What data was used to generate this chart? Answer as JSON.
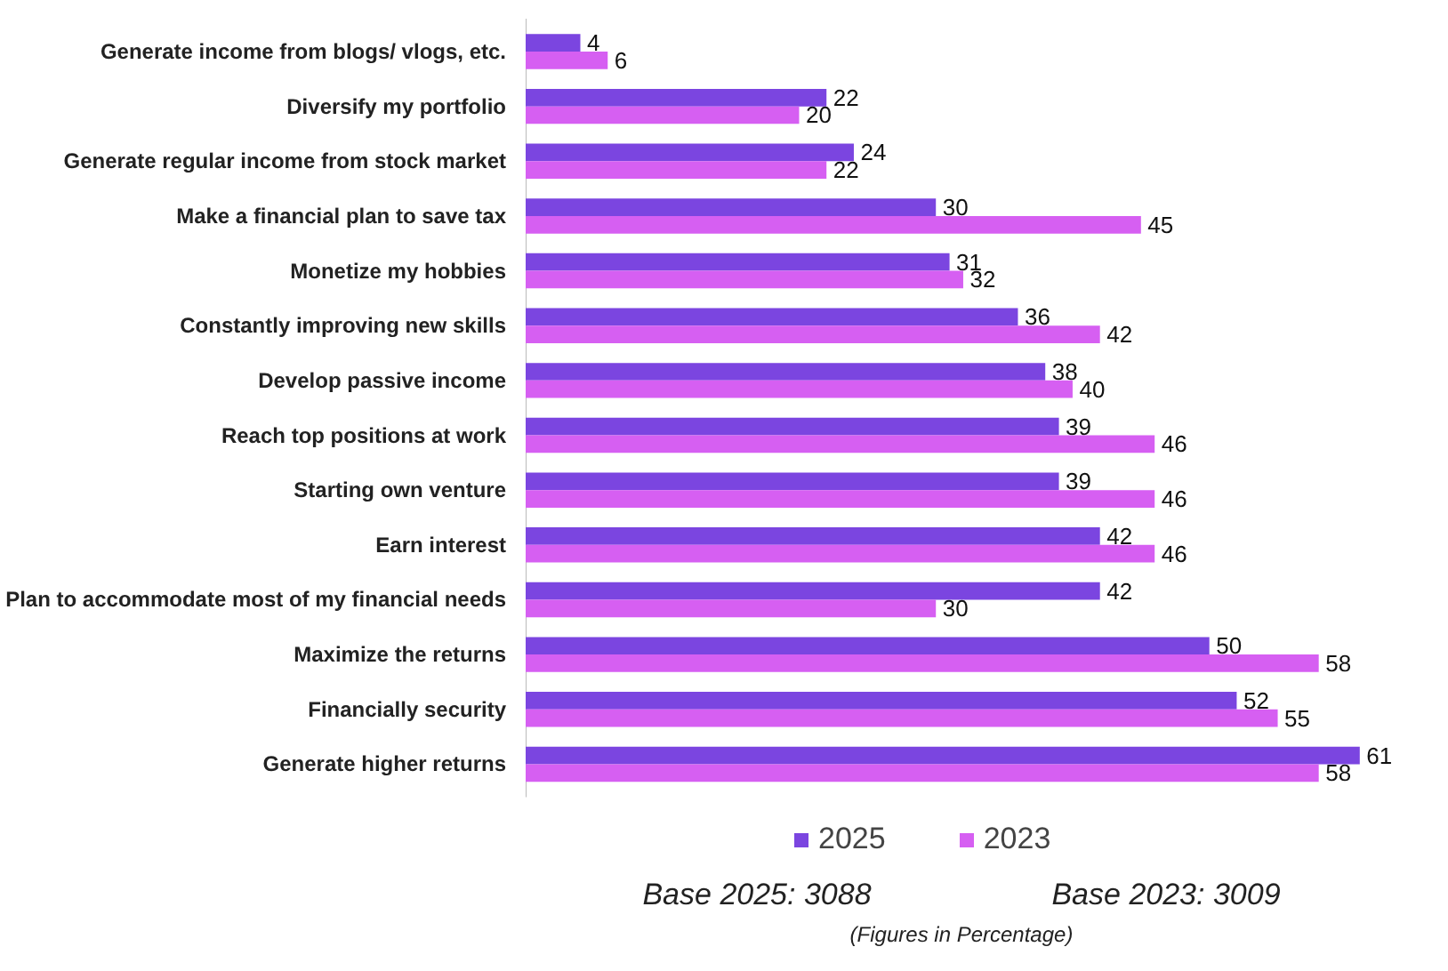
{
  "chart_data": {
    "type": "bar",
    "orientation": "horizontal",
    "categories": [
      "Generate income from blogs/ vlogs, etc.",
      "Diversify my portfolio",
      "Generate regular income from stock market",
      "Make a financial plan to save tax",
      "Monetize my hobbies",
      "Constantly improving new skills",
      "Develop passive income",
      "Reach top positions at work",
      "Starting own venture",
      "Earn interest",
      "Plan to accommodate most of my financial needs",
      "Maximize the returns",
      "Financially security",
      "Generate higher returns"
    ],
    "series": [
      {
        "name": "2025",
        "color": "#7b45e0",
        "values": [
          4,
          22,
          24,
          30,
          31,
          36,
          38,
          39,
          39,
          42,
          42,
          50,
          52,
          61
        ]
      },
      {
        "name": "2023",
        "color": "#d65ff2",
        "values": [
          6,
          20,
          22,
          45,
          32,
          42,
          40,
          46,
          46,
          46,
          30,
          58,
          55,
          58
        ]
      }
    ],
    "data_labels": true,
    "grid": false,
    "legend": "bottom",
    "annotations": [
      "Base 2025: 3088",
      "Base 2023: 3009",
      "(Figures in Percentage)"
    ]
  }
}
